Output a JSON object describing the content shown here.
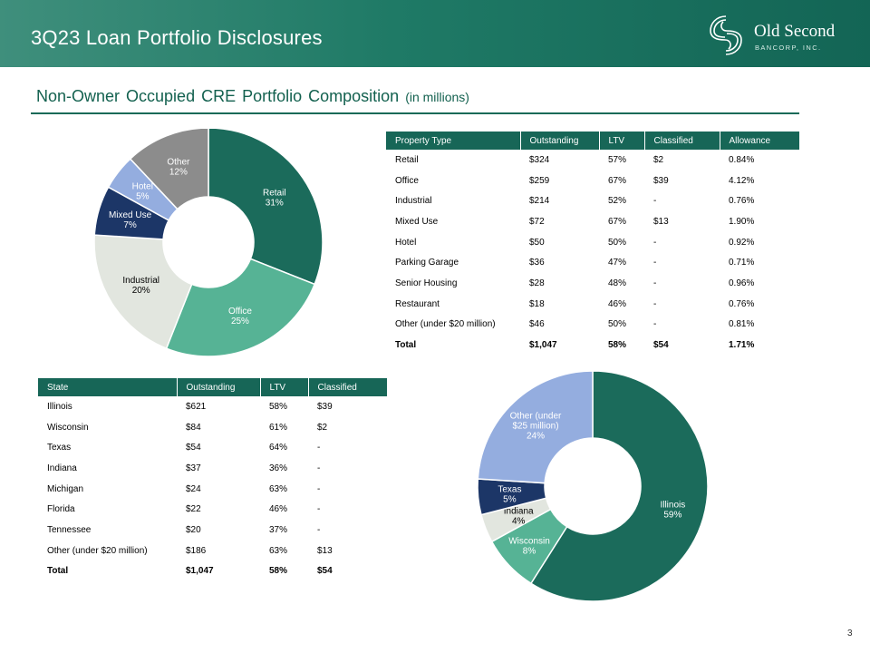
{
  "header": {
    "title": "3Q23 Loan Portfolio Disclosures",
    "logo_name": "Old Second",
    "logo_sub": "BANCORP, INC."
  },
  "section": {
    "title": "Non-Owner Occupied CRE Portfolio Composition",
    "unit": "(in millions)"
  },
  "property_table": {
    "headers": [
      "Property Type",
      "Outstanding",
      "LTV",
      "Classified",
      "Allowance"
    ],
    "rows": [
      [
        "Retail",
        "$324",
        "57%",
        "$2",
        "0.84%"
      ],
      [
        "Office",
        "$259",
        "67%",
        "$39",
        "4.12%"
      ],
      [
        "Industrial",
        "$214",
        "52%",
        "-",
        "0.76%"
      ],
      [
        "Mixed Use",
        "$72",
        "67%",
        "$13",
        "1.90%"
      ],
      [
        "Hotel",
        "$50",
        "50%",
        "-",
        "0.92%"
      ],
      [
        "Parking Garage",
        "$36",
        "47%",
        "-",
        "0.71%"
      ],
      [
        "Senior Housing",
        "$28",
        "48%",
        "-",
        "0.96%"
      ],
      [
        "Restaurant",
        "$18",
        "46%",
        "-",
        "0.76%"
      ],
      [
        "Other (under $20 million)",
        "$46",
        "50%",
        "-",
        "0.81%"
      ]
    ],
    "total": [
      "Total",
      "$1,047",
      "58%",
      "$54",
      "1.71%"
    ]
  },
  "state_table": {
    "headers": [
      "State",
      "Outstanding",
      "LTV",
      "Classified"
    ],
    "rows": [
      [
        "Illinois",
        "$621",
        "58%",
        "$39"
      ],
      [
        "Wisconsin",
        "$84",
        "61%",
        "$2"
      ],
      [
        "Texas",
        "$54",
        "64%",
        "-"
      ],
      [
        "Indiana",
        "$37",
        "36%",
        "-"
      ],
      [
        "Michigan",
        "$24",
        "63%",
        "-"
      ],
      [
        "Florida",
        "$22",
        "46%",
        "-"
      ],
      [
        "Tennessee",
        "$20",
        "37%",
        "-"
      ],
      [
        "Other (under $20 million)",
        "$186",
        "63%",
        "$13"
      ]
    ],
    "total": [
      "Total",
      "$1,047",
      "58%",
      "$54"
    ]
  },
  "chart_data": [
    {
      "type": "pie",
      "title": "",
      "slices": [
        {
          "label": "Retail",
          "value": 31,
          "display": "31%",
          "color": "#1b6b5b",
          "text_color": "#ffffff"
        },
        {
          "label": "Office",
          "value": 25,
          "display": "25%",
          "color": "#56b395",
          "text_color": "#ffffff"
        },
        {
          "label": "Industrial",
          "value": 20,
          "display": "20%",
          "color": "#e2e6df",
          "text_color": "#000000"
        },
        {
          "label": "Mixed Use",
          "value": 7,
          "display": "7%",
          "color": "#1c3667",
          "text_color": "#ffffff"
        },
        {
          "label": "Hotel",
          "value": 5,
          "display": "5%",
          "color": "#94addf",
          "text_color": "#ffffff"
        },
        {
          "label": "Other",
          "value": 12,
          "display": "12%",
          "color": "#8c8c8c",
          "text_color": "#ffffff"
        }
      ]
    },
    {
      "type": "pie",
      "title": "",
      "slices": [
        {
          "label": "Illinois",
          "value": 59,
          "display": "59%",
          "color": "#1b6b5b",
          "text_color": "#ffffff"
        },
        {
          "label": "Wisconsin",
          "value": 8,
          "display": "8%",
          "color": "#56b395",
          "text_color": "#ffffff"
        },
        {
          "label": "Indiana",
          "value": 4,
          "display": "4%",
          "color": "#e2e6df",
          "text_color": "#000000"
        },
        {
          "label": "Texas",
          "value": 5,
          "display": "5%",
          "color": "#1c3667",
          "text_color": "#ffffff"
        },
        {
          "label": "Other (under $25 million)",
          "value": 24,
          "display": "24%",
          "color": "#94addf",
          "text_color": "#ffffff"
        }
      ]
    }
  ],
  "page_number": "3"
}
